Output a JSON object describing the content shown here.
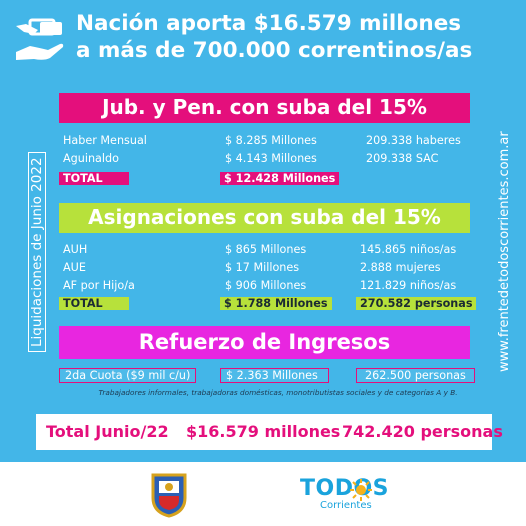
{
  "header": {
    "line1": "Nación aporta $16.579 millones",
    "line2": "a más de 700.000 correntinos/as"
  },
  "side_left": "Liquidaciones de Junio 2022",
  "side_right": "www.frentedetodoscorrientes.com.ar",
  "section_jub": {
    "title": "Jub. y Pen. con suba del 15%",
    "rows": [
      {
        "label": "Haber Mensual",
        "amount": "$ 8.285 Millones",
        "count": "209.338 haberes"
      },
      {
        "label": "Aguinaldo",
        "amount": "$ 4.143 Millones",
        "count": "209.338 SAC"
      }
    ],
    "total_label": "TOTAL",
    "total_amount": "$ 12.428 Millones"
  },
  "section_asig": {
    "title": "Asignaciones con suba del 15%",
    "rows": [
      {
        "label": "AUH",
        "amount": "$ 865 Millones",
        "count": "145.865 niños/as"
      },
      {
        "label": "AUE",
        "amount": "$ 17 Millones",
        "count": "2.888 mujeres"
      },
      {
        "label": "AF por Hijo/a",
        "amount": "$ 906 Millones",
        "count": "121.829 niños/as"
      }
    ],
    "total_label": "TOTAL",
    "total_amount": "$ 1.788 Millones",
    "total_count": "270.582 personas"
  },
  "section_ref": {
    "title": "Refuerzo de Ingresos",
    "item_label": "2da Cuota ($9 mil c/u)",
    "item_amount": "$ 2.363 Millones",
    "item_count": "262.500 personas",
    "note": "Trabajadores informales, trabajadoras domésticas, monotributistas sociales y de categorías A y B."
  },
  "totals": {
    "label": "Total Junio/22",
    "amount": "$16.579 millones",
    "people": "742.420 personas"
  },
  "brand": {
    "name": "TODOS",
    "sub": "Corrientes"
  },
  "colors": {
    "background": "#43b6e8",
    "magenta": "#e40f7c",
    "lime": "#b7e13b",
    "white": "#ffffff"
  },
  "icons": [
    "hands-money-icon",
    "province-shield-icon",
    "sun-icon"
  ]
}
